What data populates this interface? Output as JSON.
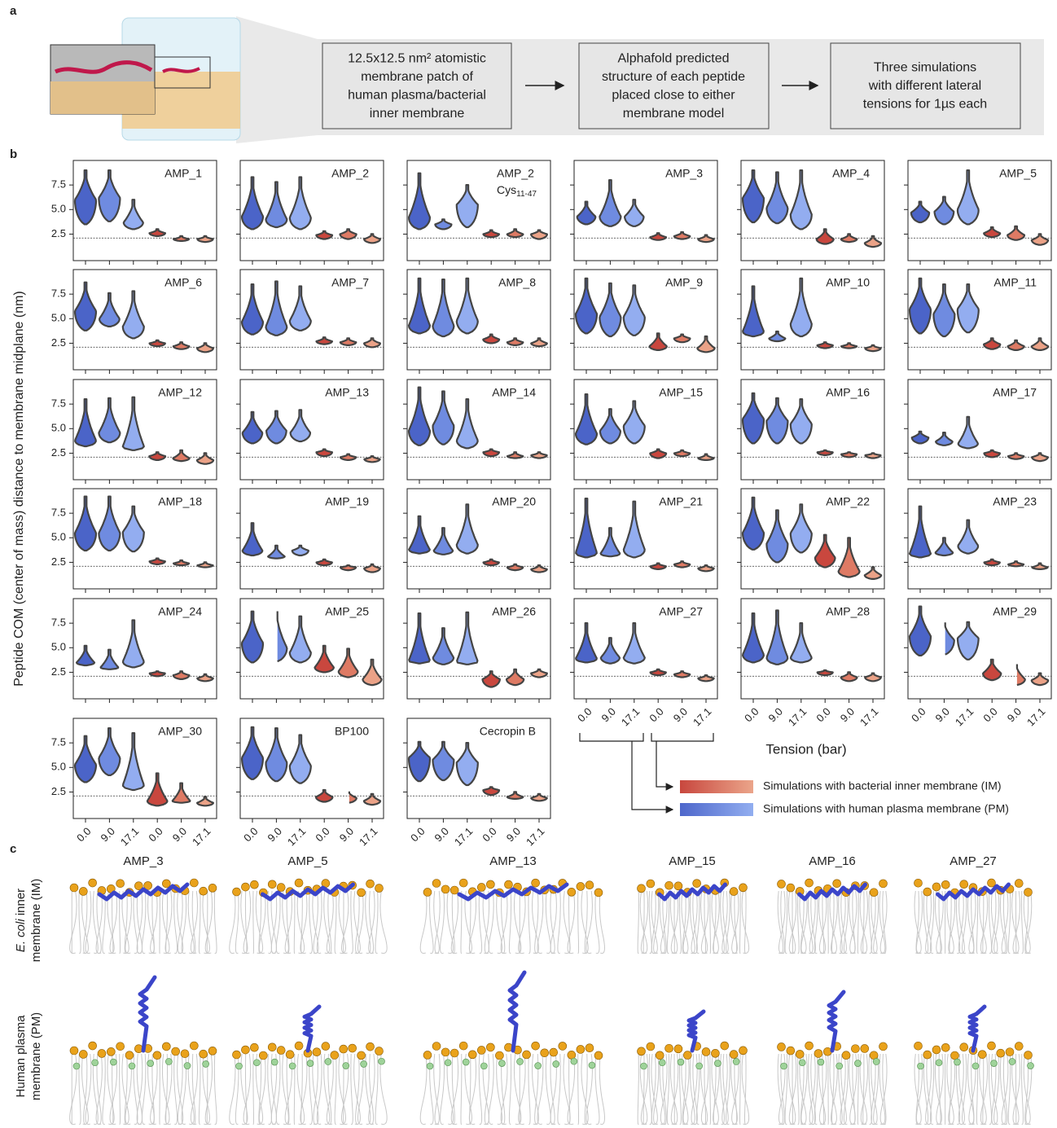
{
  "panel_labels": [
    "a",
    "b",
    "c"
  ],
  "panel_a": {
    "steps": [
      [
        "12.5x12.5 nm² atomistic",
        "membrane patch of",
        "human plasma/bacterial",
        "inner membrane"
      ],
      [
        "Alphafold predicted",
        "structure of each peptide",
        "placed close to either",
        "membrane model"
      ],
      [
        "Three simulations",
        "with different lateral",
        "tensions for 1µs each"
      ]
    ]
  },
  "chart_data": {
    "type": "violin",
    "ylabel": "Peptide COM (center of mass) distance to membrane midplane (nm)",
    "xlabel": "Tension (bar)",
    "ylim": [
      -0.2,
      10
    ],
    "yticks": [
      2.5,
      {
        "value": 5,
        "label": "5.0"
      },
      7.5
    ],
    "reference_line": 2.1,
    "categories": [
      "0.0",
      "9.0",
      "17.1",
      "0.0",
      "9.0",
      "17.1"
    ],
    "colors": [
      "#4b64c8",
      "#6f8be0",
      "#93adf0",
      "#c9473e",
      "#de7a64",
      "#eba287"
    ],
    "legend": [
      {
        "name": "Simulations with bacterial inner membrane (IM)",
        "colors": [
          "#c8473e",
          "#eba58a"
        ]
      },
      {
        "name": "Simulations with human plasma membrane (PM)",
        "colors": [
          "#4e67cb",
          "#92aef0"
        ]
      }
    ],
    "panels": [
      {
        "title": "AMP_1",
        "values": [
          [
            3.5,
            6,
            9
          ],
          [
            3.8,
            6.2,
            9
          ],
          [
            3,
            3.7,
            6
          ],
          [
            2.3,
            2.6,
            3
          ],
          [
            1.8,
            2,
            2.3
          ],
          [
            1.7,
            2,
            2.3
          ]
        ]
      },
      {
        "title": "AMP_2",
        "values": [
          [
            3,
            4.3,
            8.3
          ],
          [
            3.2,
            4,
            7.8
          ],
          [
            3,
            4.2,
            8.3
          ],
          [
            2,
            2.4,
            2.8
          ],
          [
            2,
            2.5,
            3
          ],
          [
            1.6,
            2,
            2.5
          ]
        ]
      },
      {
        "title": "AMP_2",
        "subtitle": {
          "text": "Cys",
          "sub": "11-47"
        },
        "values": [
          [
            3,
            4.2,
            8.7
          ],
          [
            3,
            3.5,
            4
          ],
          [
            3.2,
            5.5,
            7.5
          ],
          [
            2.2,
            2.5,
            2.9
          ],
          [
            2.2,
            2.5,
            3
          ],
          [
            2,
            2.5,
            2.9
          ]
        ]
      },
      {
        "title": "AMP_3",
        "values": [
          [
            3.5,
            4.3,
            5.8
          ],
          [
            3.3,
            4.3,
            8
          ],
          [
            3.3,
            4.3,
            6
          ],
          [
            1.9,
            2.2,
            2.6
          ],
          [
            2,
            2.3,
            2.7
          ],
          [
            1.7,
            2,
            2.4
          ]
        ]
      },
      {
        "title": "AMP_4",
        "values": [
          [
            3.7,
            6.2,
            9
          ],
          [
            3.6,
            5.2,
            8.8
          ],
          [
            3,
            4.5,
            9
          ],
          [
            1.5,
            2,
            3
          ],
          [
            1.7,
            2,
            2.5
          ],
          [
            1.2,
            1.6,
            2.3
          ]
        ]
      },
      {
        "title": "AMP_5",
        "values": [
          [
            3.7,
            4.7,
            5.8
          ],
          [
            3.5,
            4.8,
            6.3
          ],
          [
            3.5,
            5,
            9
          ],
          [
            2.2,
            2.6,
            3.2
          ],
          [
            1.9,
            2.4,
            3.3
          ],
          [
            1.4,
            1.9,
            2.5
          ]
        ]
      },
      {
        "title": "AMP_6",
        "values": [
          [
            3.8,
            5.8,
            8.7
          ],
          [
            4.2,
            5,
            7.6
          ],
          [
            3,
            4.2,
            7.8
          ],
          [
            2.2,
            2.5,
            2.8
          ],
          [
            1.9,
            2.2,
            2.6
          ],
          [
            1.6,
            2,
            2.5
          ]
        ]
      },
      {
        "title": "AMP_7",
        "values": [
          [
            3.4,
            4.7,
            8.5
          ],
          [
            3.3,
            4.2,
            8.8
          ],
          [
            3.8,
            4.8,
            8.3
          ],
          [
            2.4,
            2.7,
            3.1
          ],
          [
            2.3,
            2.6,
            3
          ],
          [
            2.1,
            2.5,
            3
          ]
        ]
      },
      {
        "title": "AMP_8",
        "values": [
          [
            3.5,
            4.3,
            9.1
          ],
          [
            3.2,
            4.3,
            9
          ],
          [
            3.5,
            4.8,
            9.1
          ],
          [
            2.5,
            2.9,
            3.4
          ],
          [
            2.3,
            2.6,
            3
          ],
          [
            2.2,
            2.5,
            3
          ]
        ]
      },
      {
        "title": "AMP_9",
        "values": [
          [
            3.5,
            5.5,
            9.1
          ],
          [
            3.2,
            5.2,
            8.6
          ],
          [
            3.3,
            5.2,
            8.4
          ],
          [
            1.8,
            2.2,
            3.5
          ],
          [
            2.6,
            3,
            3.4
          ],
          [
            1.6,
            2,
            3.2
          ]
        ]
      },
      {
        "title": "AMP_10",
        "values": [
          [
            3.2,
            3.7,
            8.3
          ],
          [
            2.7,
            3,
            3.7
          ],
          [
            3.2,
            4.5,
            9.1
          ],
          [
            2,
            2.3,
            2.6
          ],
          [
            2,
            2.2,
            2.5
          ],
          [
            1.7,
            2,
            2.3
          ]
        ]
      },
      {
        "title": "AMP_11",
        "values": [
          [
            3.5,
            6,
            9.1
          ],
          [
            3.2,
            5.5,
            8.5
          ],
          [
            3.6,
            6,
            8.5
          ],
          [
            1.9,
            2.4,
            3
          ],
          [
            1.8,
            2.2,
            2.8
          ],
          [
            1.8,
            2.2,
            3
          ]
        ]
      },
      {
        "title": "AMP_12",
        "values": [
          [
            3.2,
            3.8,
            8
          ],
          [
            3.6,
            4.6,
            8.1
          ],
          [
            2.8,
            3.2,
            8.2
          ],
          [
            1.8,
            2.2,
            2.6
          ],
          [
            1.7,
            2,
            2.8
          ],
          [
            1.4,
            1.8,
            2.5
          ]
        ]
      },
      {
        "title": "AMP_13",
        "values": [
          [
            3.5,
            4.6,
            6.7
          ],
          [
            3.5,
            4.8,
            6.8
          ],
          [
            3.7,
            4.6,
            6.9
          ],
          [
            2.2,
            2.6,
            2.9
          ],
          [
            1.8,
            2.1,
            2.4
          ],
          [
            1.6,
            1.9,
            2.2
          ]
        ]
      },
      {
        "title": "AMP_14",
        "values": [
          [
            3.3,
            4.8,
            9.2
          ],
          [
            3.4,
            5.3,
            8.8
          ],
          [
            3,
            3.8,
            8
          ],
          [
            2.2,
            2.6,
            2.9
          ],
          [
            2,
            2.2,
            2.6
          ],
          [
            2,
            2.3,
            2.6
          ]
        ]
      },
      {
        "title": "AMP_15",
        "values": [
          [
            3.4,
            4.5,
            8.5
          ],
          [
            3.5,
            4.8,
            7
          ],
          [
            3.5,
            5.3,
            7.8
          ],
          [
            2,
            2.5,
            2.9
          ],
          [
            2.2,
            2.5,
            2.8
          ],
          [
            1.8,
            2,
            2.4
          ]
        ]
      },
      {
        "title": "AMP_16",
        "values": [
          [
            3.5,
            6,
            8.6
          ],
          [
            3.5,
            5.8,
            8.1
          ],
          [
            3.5,
            5.5,
            8
          ],
          [
            2.3,
            2.6,
            2.8
          ],
          [
            2.1,
            2.4,
            2.6
          ],
          [
            2,
            2.3,
            2.5
          ]
        ]
      },
      {
        "title": "AMP_17",
        "values": [
          [
            3.5,
            4.1,
            4.7
          ],
          [
            3.3,
            3.7,
            4.6
          ],
          [
            3,
            3.5,
            6.2
          ],
          [
            2.1,
            2.5,
            2.8
          ],
          [
            1.9,
            2.2,
            2.5
          ],
          [
            1.7,
            2.1,
            2.5
          ]
        ]
      },
      {
        "title": "AMP_18",
        "values": [
          [
            3.7,
            5.5,
            9.2
          ],
          [
            3.7,
            5.5,
            9.2
          ],
          [
            3.6,
            5.6,
            8.2
          ],
          [
            2.3,
            2.6,
            2.9
          ],
          [
            2.2,
            2.4,
            2.7
          ],
          [
            2,
            2.2,
            2.5
          ]
        ]
      },
      {
        "title": "AMP_19",
        "values": [
          [
            3.2,
            3.7,
            6.5
          ],
          [
            2.9,
            3.1,
            4.2
          ],
          [
            3.2,
            3.7,
            4.2
          ],
          [
            2.2,
            2.5,
            2.8
          ],
          [
            1.7,
            2,
            2.2
          ],
          [
            1.5,
            1.9,
            2.3
          ]
        ]
      },
      {
        "title": "AMP_20",
        "values": [
          [
            3.4,
            3.8,
            7.2
          ],
          [
            3.3,
            3.7,
            6
          ],
          [
            3.4,
            4.3,
            8.4
          ],
          [
            2.2,
            2.5,
            2.8
          ],
          [
            1.7,
            2,
            2.3
          ],
          [
            1.5,
            1.8,
            2.2
          ]
        ]
      },
      {
        "title": "AMP_21",
        "values": [
          [
            3,
            3.5,
            9
          ],
          [
            3.1,
            3.4,
            6
          ],
          [
            3,
            3.8,
            8.7
          ],
          [
            1.8,
            2.1,
            2.4
          ],
          [
            2,
            2.3,
            2.6
          ],
          [
            1.6,
            1.9,
            2.2
          ]
        ]
      },
      {
        "title": "AMP_22",
        "values": [
          [
            3.8,
            5.5,
            9.1
          ],
          [
            2.5,
            4.4,
            7.8
          ],
          [
            3.5,
            5.5,
            8.4
          ],
          [
            2,
            3,
            5.3
          ],
          [
            1,
            1.6,
            5
          ],
          [
            0.8,
            1.2,
            2
          ]
        ]
      },
      {
        "title": "AMP_23",
        "values": [
          [
            3,
            3.4,
            8.2
          ],
          [
            3.2,
            3.5,
            5
          ],
          [
            3.4,
            4.2,
            6.8
          ],
          [
            2.2,
            2.5,
            2.8
          ],
          [
            2.1,
            2.3,
            2.6
          ],
          [
            1.8,
            2,
            2.4
          ]
        ]
      },
      {
        "title": "AMP_24",
        "values": [
          [
            3.2,
            3.5,
            5.2
          ],
          [
            2.8,
            3,
            4.8
          ],
          [
            3,
            3.6,
            7.8
          ],
          [
            2.1,
            2.4,
            2.6
          ],
          [
            1.8,
            2.2,
            2.6
          ],
          [
            1.6,
            1.9,
            2.3
          ]
        ]
      },
      {
        "title": "AMP_25",
        "values": [
          [
            3.5,
            5.5,
            8.7
          ],
          [
            3.6,
            5,
            8.9
          ],
          [
            3.5,
            4.5,
            8.2
          ],
          [
            2.5,
            3,
            5.2
          ],
          [
            2,
            2.6,
            4.9
          ],
          [
            1.2,
            1.8,
            3.8
          ]
        ]
      },
      {
        "title": "AMP_26",
        "values": [
          [
            3.4,
            3.7,
            8.5
          ],
          [
            3.3,
            4,
            7
          ],
          [
            3.3,
            3.6,
            8.6
          ],
          [
            1,
            1.8,
            2.6
          ],
          [
            1.2,
            1.8,
            2.8
          ],
          [
            2,
            2.4,
            2.8
          ]
        ]
      },
      {
        "title": "AMP_27",
        "values": [
          [
            3.5,
            3.9,
            7.5
          ],
          [
            3.4,
            4,
            6
          ],
          [
            3.4,
            4,
            7.5
          ],
          [
            2.2,
            2.5,
            2.8
          ],
          [
            2,
            2.3,
            2.6
          ],
          [
            1.6,
            1.9,
            2.2
          ]
        ]
      },
      {
        "title": "AMP_28",
        "values": [
          [
            3.5,
            4.3,
            8.5
          ],
          [
            3.3,
            4,
            8.8
          ],
          [
            3.5,
            4,
            7.5
          ],
          [
            2.2,
            2.5,
            2.7
          ],
          [
            1.6,
            2,
            2.5
          ],
          [
            1.6,
            2,
            2.4
          ]
        ]
      },
      {
        "title": "AMP_29",
        "values": [
          [
            4.2,
            6.2,
            9.2
          ],
          [
            4.3,
            5.8,
            7.7
          ],
          [
            3.8,
            6,
            7.6
          ],
          [
            1.7,
            2.4,
            3.8
          ],
          [
            1.2,
            1.8,
            3.4
          ],
          [
            1.2,
            1.7,
            2.4
          ]
        ]
      },
      {
        "title": "AMP_30",
        "values": [
          [
            3.5,
            5.3,
            8.2
          ],
          [
            4.2,
            6,
            9
          ],
          [
            2.7,
            3.2,
            8.5
          ],
          [
            1.1,
            1.6,
            4.4
          ],
          [
            1.4,
            1.6,
            3.4
          ],
          [
            1.1,
            1.4,
            2
          ]
        ]
      },
      {
        "title": "BP100",
        "values": [
          [
            3.8,
            6,
            9.1
          ],
          [
            3.6,
            5.5,
            9
          ],
          [
            3.4,
            5.2,
            8.3
          ],
          [
            1.5,
            2,
            2.7
          ],
          [
            1.4,
            1.9,
            2.6
          ],
          [
            1.2,
            1.6,
            2.3
          ]
        ]
      },
      {
        "title": "Cecropin B",
        "values": [
          [
            3.6,
            6,
            7.6
          ],
          [
            3.7,
            5.8,
            7.6
          ],
          [
            3.2,
            5.5,
            7.5
          ],
          [
            2.2,
            2.7,
            3
          ],
          [
            1.8,
            2,
            2.5
          ],
          [
            1.6,
            1.9,
            2.3
          ]
        ]
      }
    ]
  },
  "panel_c": {
    "columns": [
      "AMP_3",
      "AMP_5",
      "AMP_13",
      "AMP_15",
      "AMP_16",
      "AMP_27"
    ],
    "rows": [
      {
        "lines": [
          [
            {
              "text": "E. coli",
              "italic": true
            },
            {
              "text": " inner"
            }
          ],
          [
            {
              "text": "membrane (IM)"
            }
          ]
        ]
      },
      {
        "lines": [
          [
            {
              "text": "Human plasma"
            }
          ],
          [
            {
              "text": "membrane (PM)"
            }
          ]
        ]
      }
    ]
  }
}
